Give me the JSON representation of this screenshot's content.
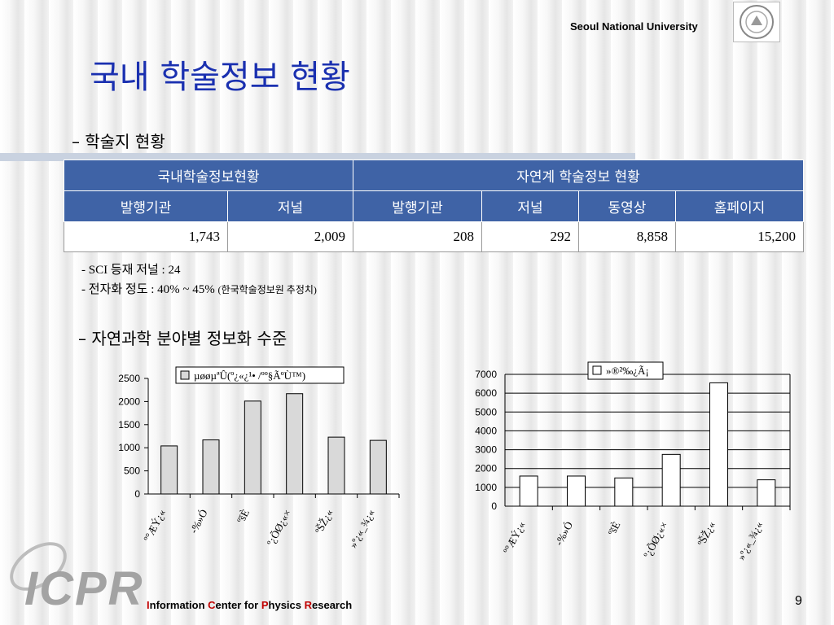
{
  "header": {
    "university": "Seoul National University",
    "title": "국내 학술정보 현황"
  },
  "bullets": {
    "first": "–  학술지 현황",
    "second": "– 자연과학 분야별 정보화 수준"
  },
  "table": {
    "group_headers": [
      "국내학술정보현황",
      "자연계 학술정보 현황"
    ],
    "columns": [
      "발행기관",
      "저널",
      "발행기관",
      "저널",
      "동영상",
      "홈페이지"
    ],
    "values": [
      "1,743",
      "2,009",
      "208",
      "292",
      "8,858",
      "15,200"
    ]
  },
  "notes": {
    "line1": "- SCI 등재 저널 : 24",
    "line2": "- 전자화 정도 : 40% ~  45%",
    "line2_source": "(한국학술정보원 추정치)"
  },
  "chart_data": [
    {
      "type": "bar",
      "legend": "µøøµªÛ(º¿«¿¹•     /ºº§ÃºÙ™)",
      "categories": [
        "º°ÆÝ¿«",
        "-%»Ó",
        "ºšÈ",
        "º¿ÕØ¿«×",
        "ºŠŽ¿«",
        "»º¿«_¾¿«"
      ],
      "values": [
        1040,
        1170,
        2010,
        2170,
        1230,
        1160
      ],
      "ylim": [
        0,
        2500
      ],
      "yticks": [
        0,
        500,
        1000,
        1500,
        2000,
        2500
      ],
      "bar_color": "#d9d9d9"
    },
    {
      "type": "bar",
      "legend": "»®²‰¿Ã¡",
      "categories": [
        "º°ÆÝ¿«",
        "-%»Ó",
        "ºšÈ",
        "º¿ÕØ¿«×",
        "ºŠŽ¿«",
        "»º¿«_¾¿«"
      ],
      "values": [
        1600,
        1600,
        1500,
        2750,
        6550,
        1400
      ],
      "ylim": [
        0,
        7000
      ],
      "yticks": [
        0,
        1000,
        2000,
        3000,
        4000,
        5000,
        6000,
        7000
      ],
      "bar_color": "#ffffff"
    }
  ],
  "footer": {
    "logo": "ICPR",
    "org_I": "I",
    "org_1": "nformation ",
    "org_C": "C",
    "org_2": "enter for ",
    "org_P": "P",
    "org_3": "hysics ",
    "org_R": "R",
    "org_4": "esearch",
    "page_number": "9"
  }
}
